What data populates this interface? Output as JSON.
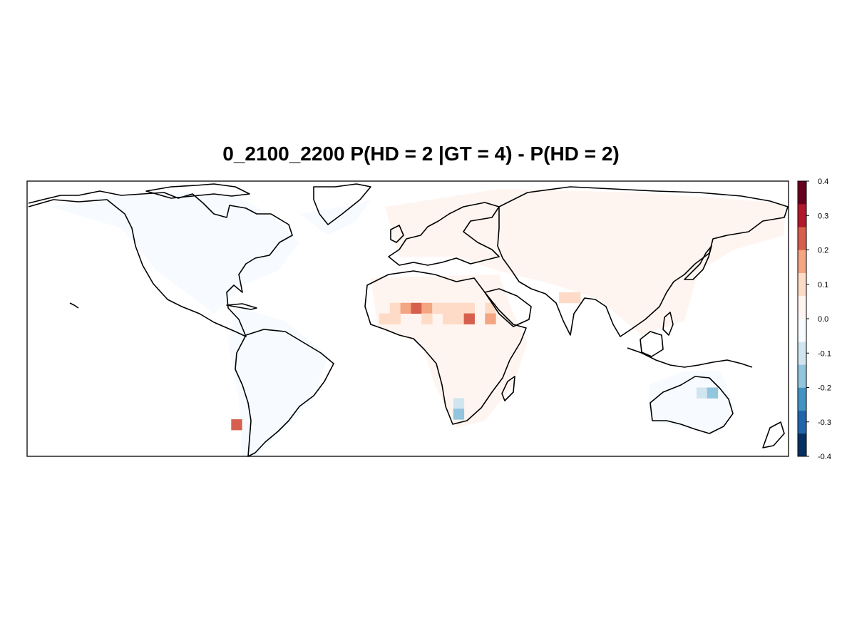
{
  "title": "0_2100_2200 P(HD = 2 |GT = 4) - P(HD = 2)",
  "map_extent": {
    "lon": [
      -180,
      180
    ],
    "lat": [
      -60,
      70
    ]
  },
  "colorbar": {
    "range": [
      -0.4,
      0.4
    ],
    "tick_labels": [
      "0.4",
      "0.3",
      "0.2",
      "0.1",
      "0.0",
      "-0.1",
      "-0.2",
      "-0.3",
      "-0.4"
    ],
    "colors": [
      "#053061",
      "#2166ac",
      "#4393c3",
      "#92c5de",
      "#d1e5f0",
      "#f7fbff",
      "#fff5f0",
      "#fddbc7",
      "#f4a582",
      "#d6604d",
      "#b2182b",
      "#67001f"
    ]
  },
  "chart_data": {
    "type": "heatmap",
    "title": "0_2100_2200 P(HD = 2 |GT = 4) - P(HD = 2)",
    "note_values": "grid cells of the difference field, value in probability units",
    "cells": [
      {
        "lon": -6,
        "lat": 10,
        "value": 0.12
      },
      {
        "lon": -1,
        "lat": 10,
        "value": 0.14
      },
      {
        "lon": 4,
        "lat": 10,
        "value": 0.22
      },
      {
        "lon": 9,
        "lat": 10,
        "value": 0.18
      },
      {
        "lon": 14,
        "lat": 10,
        "value": 0.12
      },
      {
        "lon": 19,
        "lat": 10,
        "value": 0.12
      },
      {
        "lon": 24,
        "lat": 10,
        "value": 0.12
      },
      {
        "lon": 29,
        "lat": 10,
        "value": 0.1
      },
      {
        "lon": 39,
        "lat": 10,
        "value": 0.12
      },
      {
        "lon": -11,
        "lat": 5,
        "value": 0.12
      },
      {
        "lon": -6,
        "lat": 5,
        "value": 0.12
      },
      {
        "lon": 9,
        "lat": 5,
        "value": 0.12
      },
      {
        "lon": 19,
        "lat": 5,
        "value": 0.12
      },
      {
        "lon": 24,
        "lat": 5,
        "value": 0.12
      },
      {
        "lon": 29,
        "lat": 5,
        "value": 0.2
      },
      {
        "lon": 39,
        "lat": 5,
        "value": 0.15
      },
      {
        "lon": 74,
        "lat": 15,
        "value": 0.12
      },
      {
        "lon": 79,
        "lat": 15,
        "value": 0.12
      },
      {
        "lon": 24,
        "lat": -35,
        "value": -0.1
      },
      {
        "lon": 24,
        "lat": -40,
        "value": -0.2
      },
      {
        "lon": 139,
        "lat": -30,
        "value": -0.1
      },
      {
        "lon": 144,
        "lat": -30,
        "value": -0.18
      },
      {
        "lon": -81,
        "lat": -45,
        "value": 0.2
      }
    ]
  }
}
